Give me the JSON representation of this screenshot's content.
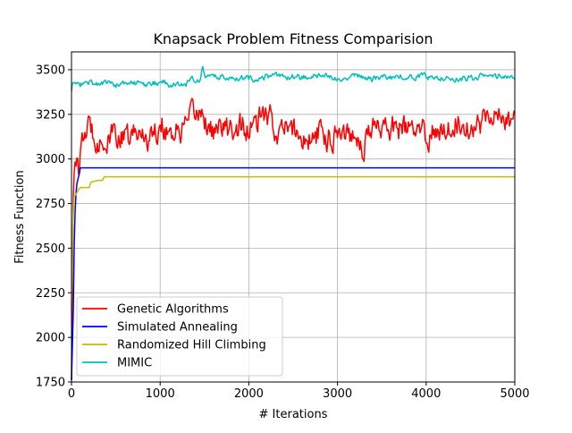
{
  "chart_data": {
    "type": "line",
    "title": "Knapsack Problem Fitness Comparision",
    "xlabel": "# Iterations",
    "ylabel": "Fitness Function",
    "xlim": [
      0,
      5000
    ],
    "ylim": [
      1750,
      3600
    ],
    "xticks": [
      0,
      1000,
      2000,
      3000,
      4000,
      5000
    ],
    "yticks": [
      1750,
      2000,
      2250,
      2500,
      2750,
      3000,
      3250,
      3500
    ],
    "grid": true,
    "legend_position": "lower-left",
    "series": [
      {
        "name": "Genetic Algorithms",
        "color": "#ff0000",
        "kind": "noisy",
        "x": [
          0,
          10,
          20,
          30,
          40,
          50,
          60,
          80,
          100,
          150,
          200,
          250,
          300,
          350,
          400,
          450,
          500,
          600,
          700,
          800,
          900,
          1000,
          1100,
          1200,
          1300,
          1400,
          1450,
          1500,
          1600,
          1700,
          1800,
          1900,
          2000,
          2100,
          2200,
          2300,
          2400,
          2500,
          2600,
          2700,
          2800,
          2900,
          3000,
          3100,
          3200,
          3300,
          3400,
          3500,
          3600,
          3700,
          3800,
          3900,
          4000,
          4100,
          4200,
          4300,
          4400,
          4500,
          4600,
          4700,
          4750,
          4800,
          4900,
          5000
        ],
        "y": [
          1760,
          2400,
          2800,
          2960,
          3000,
          2920,
          2980,
          2950,
          3000,
          3150,
          3180,
          3150,
          3120,
          3100,
          3080,
          3120,
          3150,
          3100,
          3130,
          3150,
          3120,
          3200,
          3160,
          3150,
          3180,
          3250,
          3280,
          3220,
          3150,
          3170,
          3150,
          3200,
          3150,
          3200,
          3250,
          3170,
          3150,
          3170,
          3120,
          3100,
          3150,
          3120,
          3170,
          3150,
          3150,
          3080,
          3180,
          3200,
          3170,
          3180,
          3150,
          3150,
          3130,
          3150,
          3180,
          3200,
          3220,
          3180,
          3200,
          3250,
          3280,
          3250,
          3200,
          3220
        ],
        "noise_amplitude": 80
      },
      {
        "name": "Simulated Annealing",
        "color": "#0000ff",
        "kind": "smooth",
        "x": [
          0,
          20,
          30,
          40,
          50,
          60,
          70,
          80,
          90,
          100,
          5000
        ],
        "y": [
          1760,
          2150,
          2500,
          2700,
          2800,
          2860,
          2880,
          2900,
          2920,
          2950,
          2950
        ]
      },
      {
        "name": "Randomized Hill Climbing",
        "color": "#bfbf00",
        "kind": "smooth",
        "x": [
          0,
          10,
          20,
          30,
          50,
          80,
          100,
          200,
          220,
          300,
          350,
          370,
          400,
          5000
        ],
        "y": [
          2150,
          2500,
          2700,
          2790,
          2800,
          2830,
          2840,
          2840,
          2870,
          2880,
          2880,
          2900,
          2900,
          2900
        ]
      },
      {
        "name": "MIMIC",
        "color": "#00bfbf",
        "kind": "noisy",
        "x": [
          0,
          10,
          20,
          50,
          100,
          200,
          300,
          400,
          500,
          600,
          700,
          800,
          900,
          1000,
          1100,
          1200,
          1300,
          1350,
          1400,
          1450,
          1480,
          1500,
          1600,
          1700,
          1800,
          2000,
          2200,
          2400,
          2600,
          2800,
          3000,
          3200,
          3400,
          3600,
          3800,
          4000,
          4200,
          4400,
          4600,
          4700,
          4800,
          4900,
          5000
        ],
        "y": [
          3380,
          3420,
          3430,
          3420,
          3420,
          3430,
          3420,
          3430,
          3415,
          3420,
          3430,
          3410,
          3420,
          3430,
          3420,
          3420,
          3420,
          3440,
          3450,
          3450,
          3520,
          3460,
          3460,
          3460,
          3460,
          3450,
          3460,
          3460,
          3460,
          3460,
          3460,
          3460,
          3450,
          3460,
          3460,
          3460,
          3460,
          3450,
          3460,
          3470,
          3460,
          3450,
          3450
        ],
        "noise_amplitude": 18
      }
    ]
  }
}
